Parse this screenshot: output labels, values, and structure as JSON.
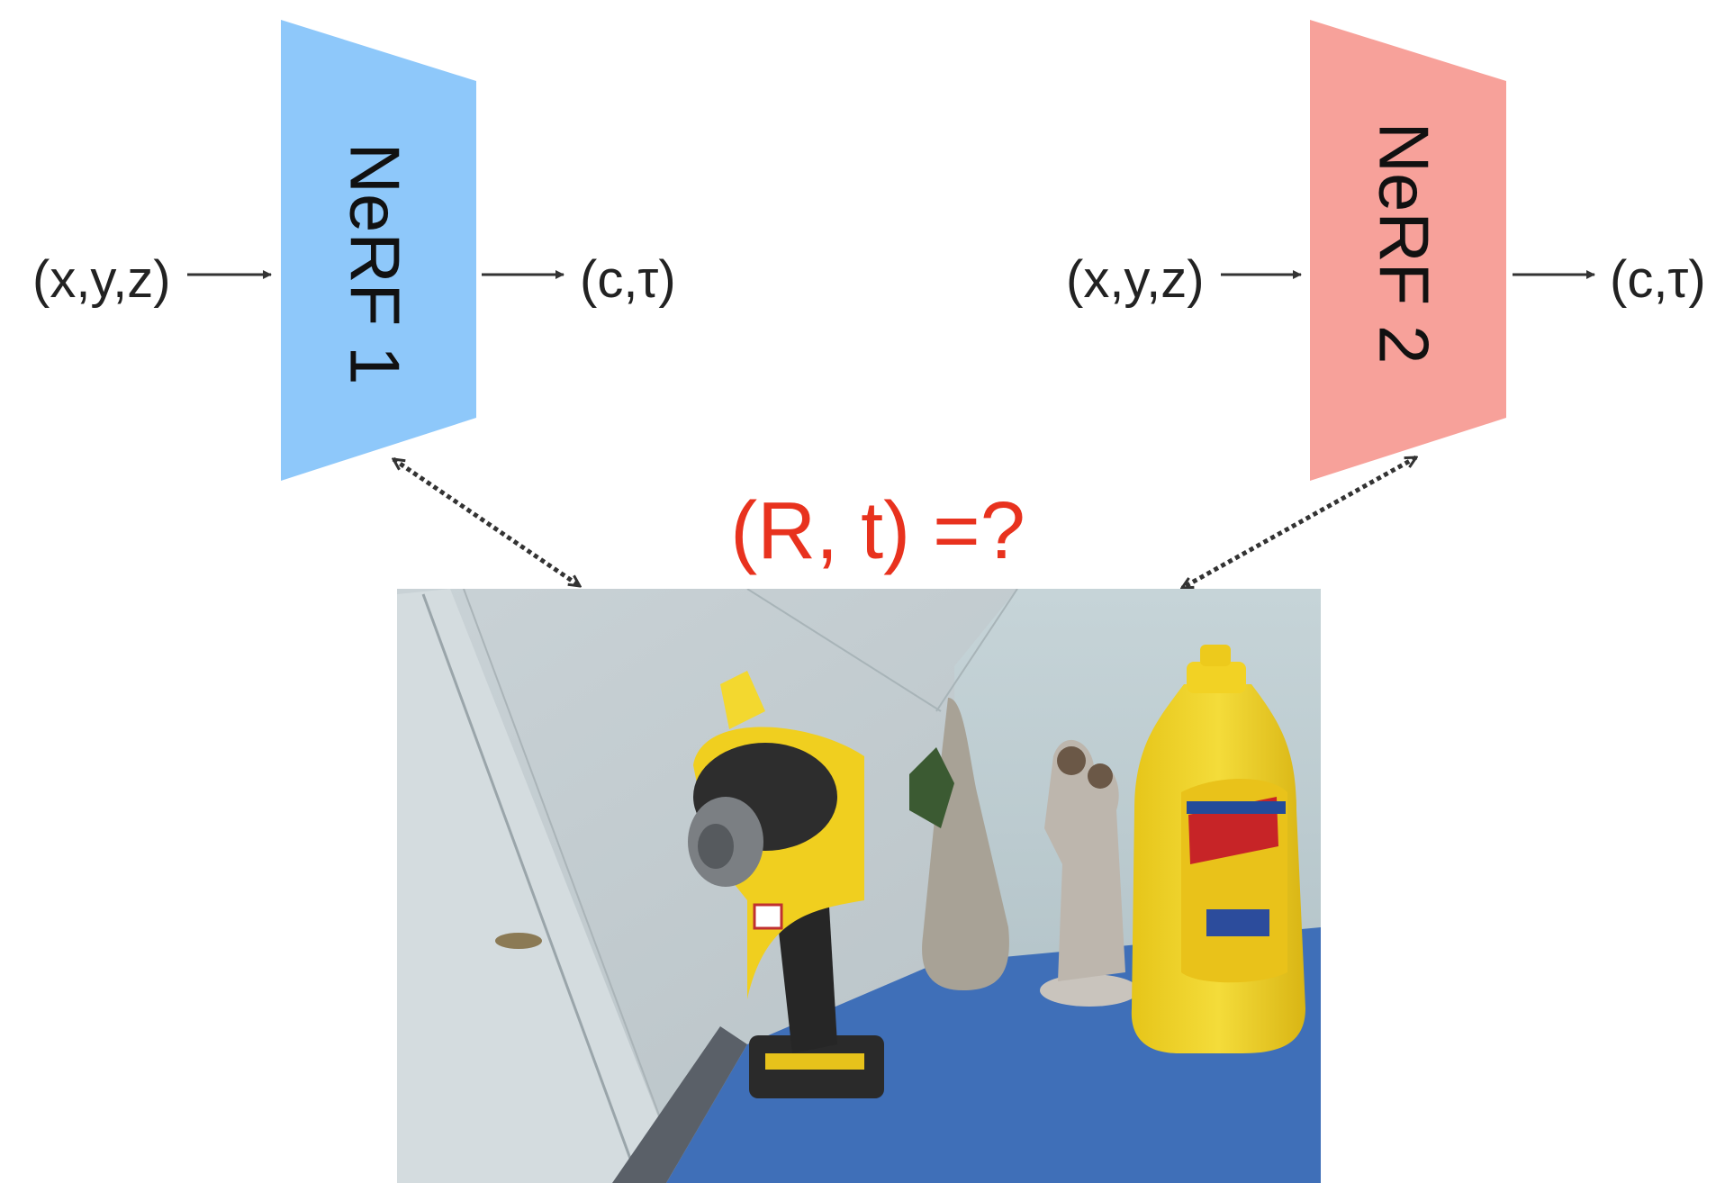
{
  "module1": {
    "name": "NeRF 1",
    "color": "#8ec8fa"
  },
  "module2": {
    "name": "NeRF 2",
    "color": "#f7a19a"
  },
  "input1": "(x,y,z)",
  "output1": "(c,τ)",
  "input2": "(x,y,z)",
  "output2": "(c,τ)",
  "question": {
    "text": "(R, t) =?",
    "color": "#e8321e"
  },
  "photo": {
    "description_icon": "photo-of-scene-icon"
  }
}
